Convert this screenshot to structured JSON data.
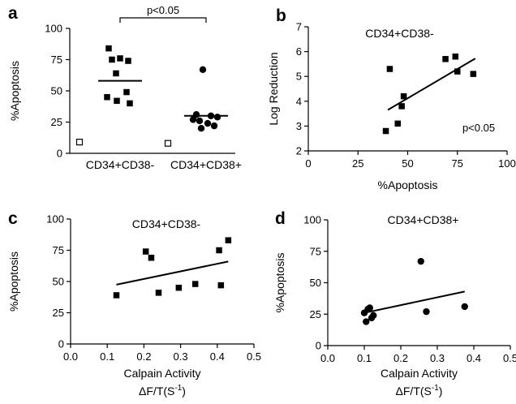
{
  "chart_data": [
    {
      "panel": "a",
      "type": "scatter",
      "categories": [
        "CD34+CD38-",
        "CD34+CD38+"
      ],
      "ylabel": "%Apoptosis",
      "ylim": [
        0,
        100
      ],
      "yticks": [
        0,
        25,
        50,
        75,
        100
      ],
      "significance": "p<0.05",
      "series": [
        {
          "category": "CD34+CD38-",
          "marker": "square",
          "values": [
            84,
            76,
            75,
            74,
            64,
            49,
            45,
            42,
            40
          ],
          "mean": 58
        },
        {
          "category": "CD34+CD38+",
          "marker": "circle",
          "values": [
            67,
            31,
            30,
            29,
            27,
            26,
            24,
            22,
            20
          ],
          "mean": 30
        }
      ],
      "controls": [
        {
          "category": "CD34+CD38-",
          "marker": "open-square",
          "value": 9
        },
        {
          "category": "CD34+CD38+",
          "marker": "open-square",
          "value": 8
        }
      ]
    },
    {
      "panel": "b",
      "type": "scatter",
      "title": "CD34+CD38-",
      "xlabel": "%Apoptosis",
      "ylabel": "Log Reduction",
      "xlim": [
        0,
        100
      ],
      "ylim": [
        2,
        7
      ],
      "xticks": [
        0,
        25,
        50,
        75,
        100
      ],
      "yticks": [
        2,
        3,
        4,
        5,
        6,
        7
      ],
      "annotation": "p<0.05",
      "points": [
        {
          "x": 39,
          "y": 2.8
        },
        {
          "x": 41,
          "y": 5.3
        },
        {
          "x": 45,
          "y": 3.1
        },
        {
          "x": 47,
          "y": 3.8
        },
        {
          "x": 48,
          "y": 4.2
        },
        {
          "x": 69,
          "y": 5.7
        },
        {
          "x": 74,
          "y": 5.8
        },
        {
          "x": 75,
          "y": 5.2
        },
        {
          "x": 83,
          "y": 5.1
        }
      ],
      "trendline": {
        "x": [
          40,
          84
        ],
        "y": [
          3.65,
          5.72
        ]
      }
    },
    {
      "panel": "c",
      "type": "scatter",
      "title": "CD34+CD38-",
      "xlabel": "Calpain Activity",
      "xunit": "ΔF/T(S",
      "xunit_sup": "-1",
      "xunit_end": ")",
      "ylabel": "%Apoptosis",
      "xlim": [
        0,
        0.5
      ],
      "ylim": [
        0,
        100
      ],
      "xticks": [
        "0.0",
        "0.1",
        "0.2",
        "0.3",
        "0.4",
        "0.5"
      ],
      "yticks": [
        0,
        25,
        50,
        75,
        100
      ],
      "points": [
        {
          "x": 0.125,
          "y": 39
        },
        {
          "x": 0.205,
          "y": 74
        },
        {
          "x": 0.22,
          "y": 69
        },
        {
          "x": 0.24,
          "y": 41
        },
        {
          "x": 0.295,
          "y": 45
        },
        {
          "x": 0.34,
          "y": 48
        },
        {
          "x": 0.405,
          "y": 75
        },
        {
          "x": 0.41,
          "y": 47
        },
        {
          "x": 0.43,
          "y": 83
        }
      ],
      "trendline": {
        "x": [
          0.125,
          0.43
        ],
        "y": [
          47.5,
          66
        ]
      }
    },
    {
      "panel": "d",
      "type": "scatter",
      "title": "CD34+CD38+",
      "xlabel": "Calpain Activity",
      "xunit": "ΔF/T(S",
      "xunit_sup": "-1",
      "xunit_end": ")",
      "ylabel": "%Apoptosis",
      "xlim": [
        0,
        0.5
      ],
      "ylim": [
        0,
        100
      ],
      "xticks": [
        "0.0",
        "0.1",
        "0.2",
        "0.3",
        "0.4",
        "0.5"
      ],
      "yticks": [
        0,
        25,
        50,
        75,
        100
      ],
      "points": [
        {
          "x": 0.1,
          "y": 26
        },
        {
          "x": 0.105,
          "y": 19
        },
        {
          "x": 0.11,
          "y": 29
        },
        {
          "x": 0.115,
          "y": 30
        },
        {
          "x": 0.12,
          "y": 22
        },
        {
          "x": 0.125,
          "y": 24
        },
        {
          "x": 0.255,
          "y": 67
        },
        {
          "x": 0.27,
          "y": 27
        },
        {
          "x": 0.375,
          "y": 31
        }
      ],
      "trendline": {
        "x": [
          0.1,
          0.375
        ],
        "y": [
          26,
          43
        ]
      }
    }
  ]
}
